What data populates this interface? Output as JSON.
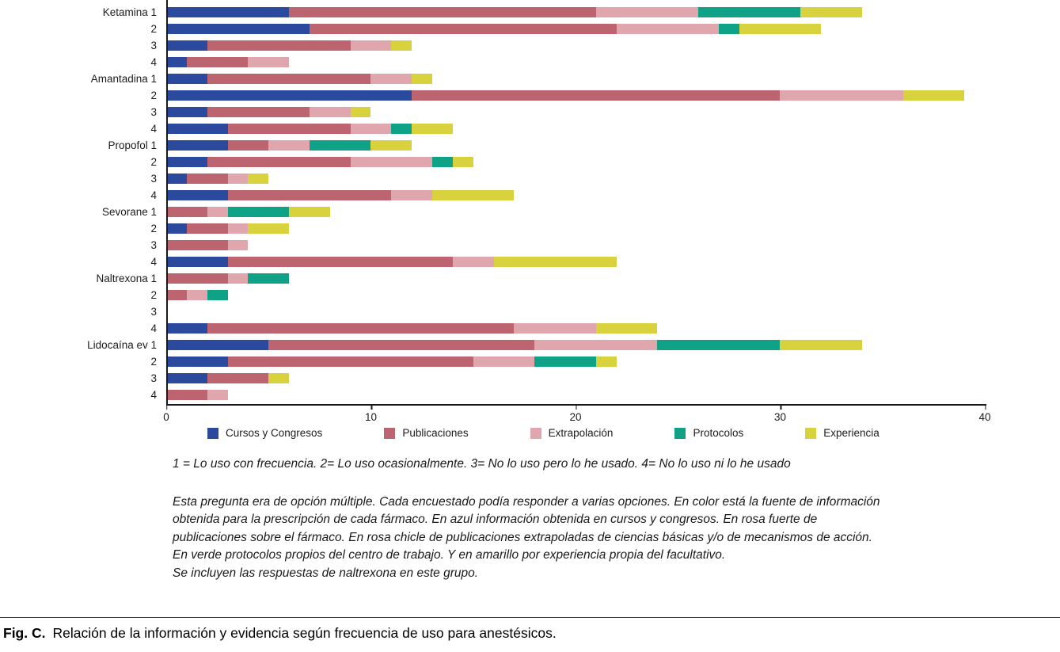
{
  "chart_data": {
    "type": "bar",
    "orientation": "horizontal",
    "stacked": true,
    "title": "",
    "xlabel": "",
    "ylabel": "",
    "xlim": [
      0,
      40
    ],
    "x_ticks": [
      0,
      10,
      20,
      30,
      40
    ],
    "grid": false,
    "legend_position": "bottom",
    "series_names": [
      "Cursos y Congresos",
      "Publicaciones",
      "Extrapolación",
      "Protocolos",
      "Experiencia"
    ],
    "series_colors": [
      "#2c4a9d",
      "#bd6471",
      "#dfa6ae",
      "#0fa287",
      "#d8d23e"
    ],
    "rows": [
      {
        "label": "Ketamina 1",
        "values": [
          6,
          15,
          5,
          5,
          3
        ]
      },
      {
        "label": "2",
        "values": [
          7,
          15,
          5,
          1,
          4
        ]
      },
      {
        "label": "3",
        "values": [
          2,
          7,
          2,
          0,
          1
        ]
      },
      {
        "label": "4",
        "values": [
          1,
          3,
          2,
          0,
          0
        ]
      },
      {
        "label": "Amantadina 1",
        "values": [
          2,
          8,
          2,
          0,
          1
        ]
      },
      {
        "label": "2",
        "values": [
          12,
          18,
          6,
          0,
          3
        ]
      },
      {
        "label": "3",
        "values": [
          2,
          5,
          2,
          0,
          1
        ]
      },
      {
        "label": "4",
        "values": [
          3,
          6,
          2,
          1,
          2
        ]
      },
      {
        "label": "Propofol 1",
        "values": [
          3,
          2,
          2,
          3,
          2
        ]
      },
      {
        "label": "2",
        "values": [
          2,
          7,
          4,
          1,
          1
        ]
      },
      {
        "label": "3",
        "values": [
          1,
          2,
          1,
          0,
          1
        ]
      },
      {
        "label": "4",
        "values": [
          3,
          8,
          2,
          0,
          4
        ]
      },
      {
        "label": "Sevorane 1",
        "values": [
          0,
          2,
          1,
          3,
          2
        ]
      },
      {
        "label": "2",
        "values": [
          1,
          2,
          1,
          0,
          2
        ]
      },
      {
        "label": "3",
        "values": [
          0,
          3,
          1,
          0,
          0
        ]
      },
      {
        "label": "4",
        "values": [
          3,
          11,
          2,
          0,
          6
        ]
      },
      {
        "label": "Naltrexona 1",
        "values": [
          0,
          3,
          1,
          2,
          0
        ]
      },
      {
        "label": "2",
        "values": [
          0,
          1,
          1,
          1,
          0
        ]
      },
      {
        "label": "3",
        "values": [
          0,
          0,
          0,
          0,
          0
        ]
      },
      {
        "label": "4",
        "values": [
          2,
          15,
          4,
          0,
          3
        ]
      },
      {
        "label": "Lidocaína ev 1",
        "values": [
          5,
          13,
          6,
          6,
          4
        ]
      },
      {
        "label": "2",
        "values": [
          3,
          12,
          3,
          3,
          1
        ]
      },
      {
        "label": "3",
        "values": [
          2,
          3,
          0,
          0,
          1
        ]
      },
      {
        "label": "4",
        "values": [
          0,
          2,
          1,
          0,
          0
        ]
      }
    ]
  },
  "notes": {
    "scale_note": "1 = Lo uso con frecuencia. 2= Lo uso ocasionalmente. 3= No lo uso pero lo he usado. 4= No lo uso ni lo he usado",
    "paragraph": "Esta pregunta era de opción múltiple. Cada encuestado podía responder a varias opciones. En color está la fuente de información obtenida para la prescripción de cada fármaco. En azul información obtenida en cursos y congresos. En rosa fuerte de publicaciones sobre el fármaco. En rosa chicle de publicaciones extrapoladas de ciencias básicas y/o de mecanismos de acción. En verde protocolos propios del centro de trabajo. Y en amarillo por experiencia propia del facultativo.",
    "inclusion_note": "Se incluyen las respuestas de naltrexona en este grupo."
  },
  "caption": {
    "label": "Fig. C.",
    "text": "Relación de la información y evidencia según frecuencia de uso para anestésicos."
  }
}
